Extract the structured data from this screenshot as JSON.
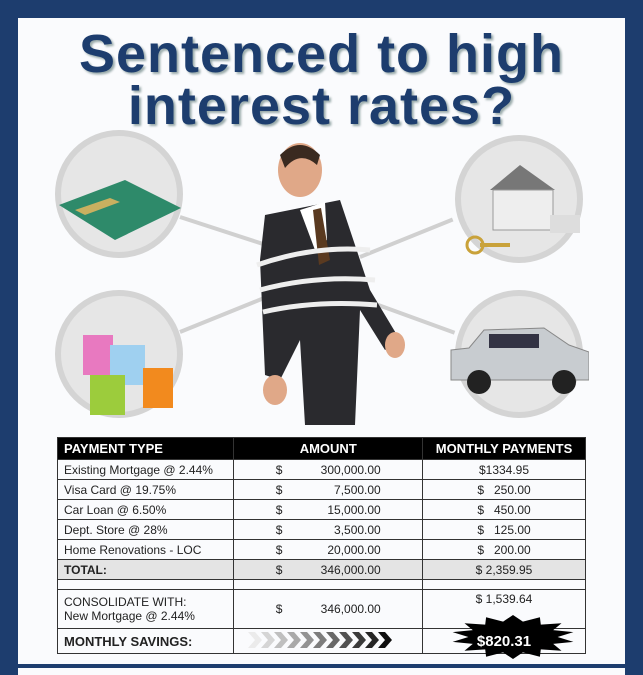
{
  "title": {
    "line1": "Sentenced to high",
    "line2": "interest rates?"
  },
  "colors": {
    "frame": "#1d3d6e",
    "header_bg": "#000000"
  },
  "images": [
    "credit-card",
    "house-with-keys",
    "shopping-bags",
    "suv-car",
    "man-tied-with-rope"
  ],
  "table": {
    "headers": [
      "PAYMENT TYPE",
      "AMOUNT",
      "MONTHLY PAYMENTS"
    ],
    "rows": [
      {
        "type": "Existing Mortgage @ 2.44%",
        "amount": "300,000.00",
        "monthly": "$1334.95"
      },
      {
        "type": "Visa Card @ 19.75%",
        "amount": "7,500.00",
        "monthly": "$   250.00"
      },
      {
        "type": "Car Loan @ 6.50%",
        "amount": "15,000.00",
        "monthly": "$   450.00"
      },
      {
        "type": "Dept. Store @ 28%",
        "amount": "3,500.00",
        "monthly": "$   125.00"
      },
      {
        "type": "Home Renovations - LOC",
        "amount": "20,000.00",
        "monthly": "$   200.00"
      }
    ],
    "total": {
      "label": "TOTAL:",
      "amount": "346,000.00",
      "monthly": "$ 2,359.95"
    },
    "consolidate": {
      "line1": "CONSOLIDATE WITH:",
      "line2": "New Mortgage @ 2.44%",
      "amount": "346,000.00",
      "monthly": "$ 1,539.64"
    },
    "savings": {
      "label": "MONTHLY SAVINGS:",
      "value": "$820.31"
    },
    "currency": "$"
  }
}
